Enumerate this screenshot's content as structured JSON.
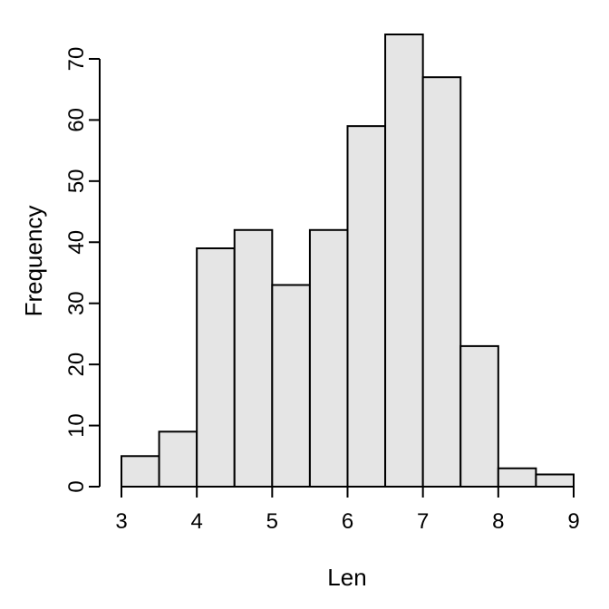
{
  "chart_data": {
    "type": "bar",
    "title": "",
    "xlabel": "Len",
    "ylabel": "Frequency",
    "bin_edges": [
      3,
      3.5,
      4,
      4.5,
      5,
      5.5,
      6,
      6.5,
      7,
      7.5,
      8,
      8.5,
      9
    ],
    "values": [
      5,
      9,
      39,
      42,
      33,
      42,
      59,
      74,
      67,
      23,
      3,
      2
    ],
    "xlim": [
      3,
      9
    ],
    "ylim": [
      0,
      74
    ],
    "x_ticks": [
      3,
      4,
      5,
      6,
      7,
      8,
      9
    ],
    "y_ticks": [
      0,
      10,
      20,
      30,
      40,
      50,
      60,
      70
    ],
    "colors": {
      "bar_fill": "#e5e5e5",
      "bar_stroke": "#000000"
    },
    "grid": false,
    "legend": "none"
  }
}
